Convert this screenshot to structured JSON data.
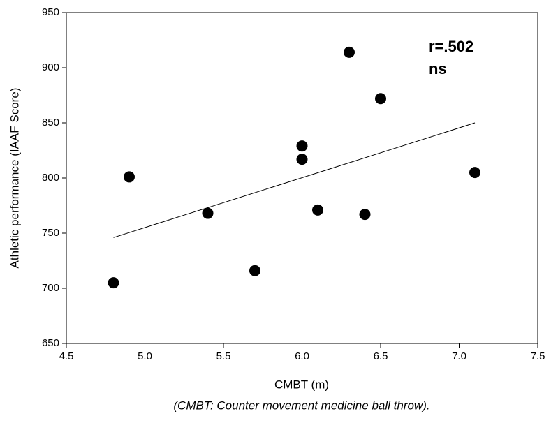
{
  "chart_data": {
    "type": "scatter",
    "x_label": "CMBT (m)",
    "y_label": "Athletic performance (IAAF Score)",
    "caption": "(CMBT: Counter movement medicine ball throw).",
    "annotations": [
      "r=.502",
      "ns"
    ],
    "x": [
      4.8,
      4.9,
      5.4,
      5.7,
      6.0,
      6.0,
      6.1,
      6.3,
      6.4,
      6.5,
      7.1
    ],
    "values": [
      705,
      801,
      768,
      716,
      829,
      817,
      771,
      914,
      767,
      872,
      805
    ],
    "color": "#000000",
    "trendline": {
      "x": [
        4.8,
        7.1
      ],
      "y": [
        746,
        850
      ]
    },
    "xlim": [
      4.5,
      7.5
    ],
    "xticks": [
      4.5,
      {
        "value": 5,
        "label": "5.0"
      },
      5.5,
      {
        "value": 6,
        "label": "6.0"
      },
      6.5,
      {
        "value": 7,
        "label": "7.0"
      },
      7.5
    ],
    "ylim": [
      650,
      950
    ],
    "yticks": [
      650,
      700,
      750,
      800,
      850,
      900,
      950
    ]
  }
}
